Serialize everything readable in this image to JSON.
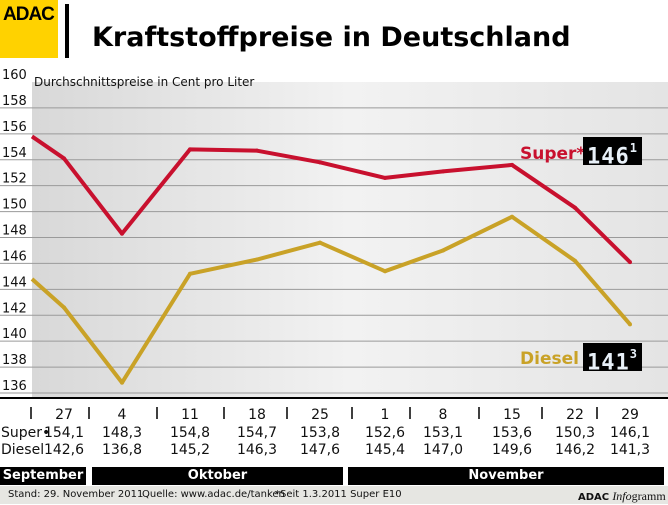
{
  "header": {
    "logo": "ADAC",
    "title": "Kraftstoffpreise in Deutschland"
  },
  "chart_data": {
    "type": "line",
    "subtitle": "Durchschnittspreise in Cent pro Liter",
    "ylim": [
      136,
      160
    ],
    "yticks": [
      160,
      158,
      156,
      154,
      152,
      150,
      148,
      146,
      144,
      142,
      140,
      138,
      136
    ],
    "grid": true,
    "categories": [
      "27",
      "4",
      "11",
      "18",
      "25",
      "1",
      "8",
      "15",
      "22",
      "29"
    ],
    "lead_in": {
      "Super": 155.8,
      "Diesel": 144.8
    },
    "series": [
      {
        "name": "Super*",
        "color": "#c8102e",
        "values": [
          154.1,
          148.3,
          154.8,
          154.7,
          153.8,
          152.6,
          153.1,
          153.6,
          150.3,
          146.1
        ],
        "labels": [
          "154,1",
          "148,3",
          "154,8",
          "154,7",
          "153,8",
          "152,6",
          "153,1",
          "153,6",
          "150,3",
          "146,1"
        ]
      },
      {
        "name": "Diesel",
        "color": "#c9a227",
        "values": [
          142.6,
          136.8,
          145.2,
          146.3,
          147.6,
          145.4,
          147.0,
          149.6,
          146.2,
          141.3
        ],
        "labels": [
          "142,6",
          "136,8",
          "145,2",
          "146,3",
          "147,6",
          "145,4",
          "147,0",
          "149,6",
          "146,2",
          "141,3"
        ]
      }
    ],
    "table_row_labels": {
      "super": "Super",
      "super_mark": "•",
      "diesel": "Diesel"
    },
    "displays": {
      "super": {
        "main": "146",
        "sup": "1"
      },
      "diesel": {
        "main": "141",
        "sup": "3"
      }
    },
    "months": [
      "September",
      "Oktober",
      "November"
    ]
  },
  "footer": {
    "stand": "Stand: 29. November 2011",
    "quelle": "Quelle: www.adac.de/tanken",
    "note": "*Seit 1.3.2011 Super E10",
    "brand": "ADAC",
    "brand_italic": "Info",
    "brand_rest": "gramm"
  }
}
